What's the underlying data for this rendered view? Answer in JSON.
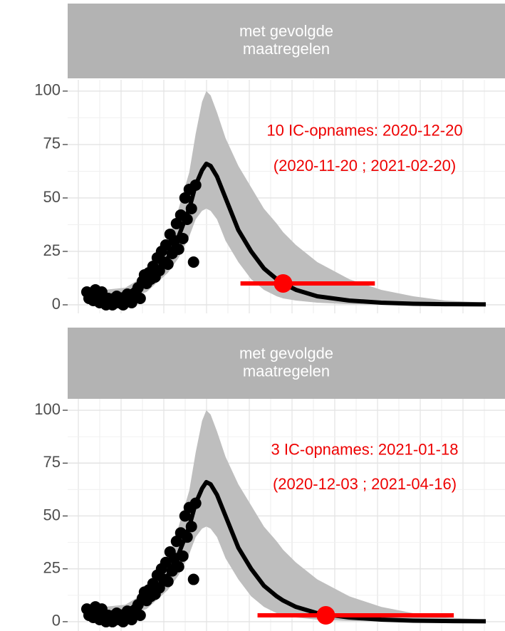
{
  "chart_data": [
    {
      "type": "line",
      "strip_lines": [
        "met gevolgde",
        "maatregelen"
      ],
      "annotation_lines": [
        "10 IC-opnames: 2020-12-20",
        "(2020-11-20 ; 2021-02-20)"
      ],
      "annotation_color": "#ee0000",
      "xlim": [
        -2,
        203
      ],
      "ylim": [
        -4,
        105.3
      ],
      "yticks": [
        0,
        25,
        50,
        75,
        100
      ],
      "grid": true,
      "points": {
        "color": "#000000",
        "x": [
          7,
          8,
          9,
          10,
          11,
          12,
          13,
          14,
          15,
          16,
          17,
          18,
          19,
          20,
          21,
          22,
          23,
          24,
          25,
          26,
          27,
          28,
          29,
          30,
          31,
          32,
          33,
          34,
          35,
          36,
          37,
          38,
          39,
          40,
          41,
          42,
          43,
          44,
          45,
          46,
          47,
          48,
          49,
          50,
          51,
          52,
          53,
          54,
          55,
          56,
          57,
          58
        ],
        "y": [
          6,
          3,
          5,
          2,
          7,
          4,
          1,
          6,
          2,
          0,
          3,
          1,
          0,
          2,
          4,
          1,
          3,
          0,
          2,
          5,
          3,
          1,
          4,
          6,
          8,
          3,
          11,
          14,
          10,
          15,
          12,
          18,
          13,
          22,
          16,
          25,
          20,
          28,
          19,
          33,
          24,
          30,
          38,
          26,
          42,
          31,
          50,
          40,
          54,
          45,
          20,
          56
        ]
      },
      "fit": {
        "color": "#000000",
        "band_color": "#bebebe",
        "x": [
          7,
          15,
          25,
          35,
          45,
          50,
          55,
          58,
          61,
          63,
          65,
          68,
          72,
          78,
          84,
          90,
          96,
          99,
          105,
          115,
          130,
          145,
          160,
          175,
          194
        ],
        "y": [
          5,
          4,
          5,
          10,
          22,
          32,
          45,
          56,
          63,
          66,
          65,
          60,
          50,
          35,
          25,
          17,
          12,
          10,
          7,
          4,
          2,
          1,
          0.5,
          0.3,
          0.2
        ],
        "lower": [
          3,
          2,
          3,
          6,
          15,
          22,
          32,
          40,
          44,
          45,
          44,
          40,
          30,
          20,
          12,
          7,
          4,
          3,
          2,
          1,
          0.3,
          0.1,
          0,
          0,
          0
        ],
        "upper": [
          8,
          7,
          8,
          14,
          30,
          45,
          62,
          80,
          95,
          100,
          98,
          90,
          78,
          65,
          55,
          45,
          38,
          34,
          28,
          20,
          12,
          7,
          4,
          2,
          1
        ]
      },
      "estimate": {
        "color": "#ff0000",
        "x": 99,
        "y": 10,
        "low": 79,
        "high": 142
      }
    },
    {
      "type": "line",
      "strip_lines": [
        "met gevolgde",
        "maatregelen"
      ],
      "annotation_lines": [
        "3 IC-opnames: 2021-01-18",
        "(2020-12-03 ; 2021-04-16)"
      ],
      "annotation_color": "#ee0000",
      "xlim": [
        -2,
        203
      ],
      "ylim": [
        -4.4,
        105.4
      ],
      "yticks": [
        0,
        25,
        50,
        75,
        100
      ],
      "grid": true,
      "points": {
        "color": "#000000",
        "x": [
          7,
          8,
          9,
          10,
          11,
          12,
          13,
          14,
          15,
          16,
          17,
          18,
          19,
          20,
          21,
          22,
          23,
          24,
          25,
          26,
          27,
          28,
          29,
          30,
          31,
          32,
          33,
          34,
          35,
          36,
          37,
          38,
          39,
          40,
          41,
          42,
          43,
          44,
          45,
          46,
          47,
          48,
          49,
          50,
          51,
          52,
          53,
          54,
          55,
          56,
          57,
          58
        ],
        "y": [
          6,
          3,
          5,
          2,
          7,
          4,
          1,
          6,
          2,
          0,
          3,
          1,
          0,
          2,
          4,
          1,
          3,
          0,
          2,
          5,
          3,
          1,
          4,
          6,
          8,
          3,
          11,
          14,
          10,
          15,
          12,
          18,
          13,
          22,
          16,
          25,
          20,
          28,
          19,
          33,
          24,
          30,
          38,
          26,
          42,
          31,
          50,
          40,
          54,
          45,
          20,
          56
        ]
      },
      "fit": {
        "color": "#000000",
        "band_color": "#bebebe",
        "x": [
          7,
          15,
          25,
          35,
          45,
          50,
          55,
          58,
          61,
          63,
          65,
          68,
          72,
          78,
          84,
          90,
          96,
          99,
          105,
          115,
          130,
          145,
          160,
          175,
          194
        ],
        "y": [
          5,
          4,
          5,
          10,
          22,
          32,
          45,
          56,
          63,
          66,
          65,
          60,
          50,
          35,
          25,
          17,
          12,
          10,
          7,
          4,
          2,
          1,
          0.5,
          0.3,
          0.2
        ],
        "lower": [
          3,
          2,
          3,
          6,
          15,
          22,
          32,
          40,
          44,
          45,
          44,
          40,
          30,
          20,
          12,
          7,
          4,
          3,
          2,
          1,
          0.3,
          0.1,
          0,
          0,
          0
        ],
        "upper": [
          8,
          7,
          8,
          14,
          30,
          45,
          62,
          80,
          95,
          100,
          98,
          90,
          78,
          65,
          55,
          45,
          38,
          34,
          28,
          20,
          12,
          7,
          4,
          2,
          1
        ]
      },
      "estimate": {
        "color": "#ff0000",
        "x": 119,
        "y": 3,
        "low": 87,
        "high": 179
      }
    }
  ]
}
